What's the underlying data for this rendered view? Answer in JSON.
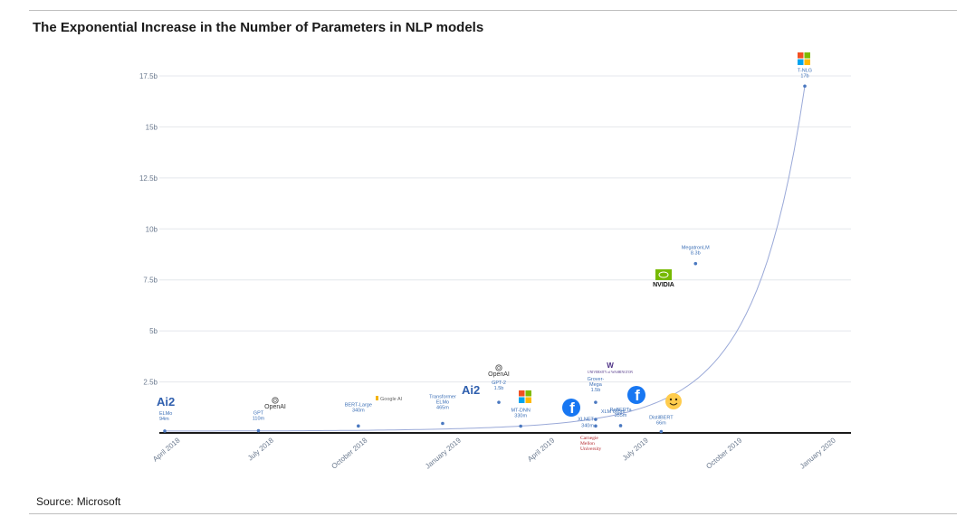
{
  "header": {
    "title": "The Exponential Increase in the Number of Parameters in NLP models"
  },
  "footer": {
    "source": "Source: Microsoft"
  },
  "chart_data": {
    "type": "line",
    "title": "The Exponential Increase in the Number of Parameters in NLP models",
    "xlabel": "",
    "ylabel": "",
    "ylim": [
      0,
      18
    ],
    "y_ticks": [
      {
        "v": 2.5,
        "label": "2.5b"
      },
      {
        "v": 5,
        "label": "5b"
      },
      {
        "v": 7.5,
        "label": "7.5b"
      },
      {
        "v": 10,
        "label": "10b"
      },
      {
        "v": 12.5,
        "label": "12.5b"
      },
      {
        "v": 15,
        "label": "15b"
      },
      {
        "v": 17.5,
        "label": "17.5b"
      }
    ],
    "x_ticks": [
      {
        "t": 0.5,
        "label": "April 2018"
      },
      {
        "t": 3.5,
        "label": "July 2018"
      },
      {
        "t": 6.5,
        "label": "October 2018"
      },
      {
        "t": 9.5,
        "label": "January 2019"
      },
      {
        "t": 12.5,
        "label": "April 2019"
      },
      {
        "t": 15.5,
        "label": "July 2019"
      },
      {
        "t": 18.5,
        "label": "October 2019"
      },
      {
        "t": 21.5,
        "label": "January 2020"
      }
    ],
    "grid": true,
    "points": [
      {
        "t": 0.0,
        "y": 0.094,
        "name": "ELMo",
        "value": "94m",
        "logo": "Ai2"
      },
      {
        "t": 3.0,
        "y": 0.11,
        "name": "GPT",
        "value": "110m",
        "logo": "OpenAI"
      },
      {
        "t": 6.2,
        "y": 0.34,
        "name": "BERT-Large",
        "value": "340m",
        "logo": "Google AI"
      },
      {
        "t": 8.9,
        "y": 0.465,
        "name": "Transformer ELMo",
        "value": "465m",
        "logo": "Ai2"
      },
      {
        "t": 10.7,
        "y": 1.5,
        "name": "GPT-2",
        "value": "1.5b",
        "logo": "OpenAI"
      },
      {
        "t": 11.4,
        "y": 0.33,
        "name": "MT-DNN",
        "value": "330m",
        "logo": "Microsoft"
      },
      {
        "t": 13.8,
        "y": 0.665,
        "name": "XLM",
        "value": "665m",
        "logo": "Facebook"
      },
      {
        "t": 13.8,
        "y": 1.5,
        "name": "Grover-Mega",
        "value": "1.5b",
        "logo": "University of Washington"
      },
      {
        "t": 13.8,
        "y": 0.34,
        "name": "XLNET",
        "value": "340m",
        "logo": "Carnegie Mellon University"
      },
      {
        "t": 14.6,
        "y": 0.355,
        "name": "RoBERTa",
        "value": "355m",
        "logo": "Facebook"
      },
      {
        "t": 15.9,
        "y": 0.066,
        "name": "DistilBERT",
        "value": "66m",
        "logo": "Hugging Face"
      },
      {
        "t": 17.0,
        "y": 8.3,
        "name": "MegatronLM",
        "value": "8.3b",
        "logo": "NVIDIA"
      },
      {
        "t": 20.5,
        "y": 17.0,
        "name": "T-NLG",
        "value": "17b",
        "logo": "Microsoft"
      }
    ],
    "logos": {
      "ai2": "Ai2",
      "openai": "OpenAI",
      "google": "Google AI",
      "nvidia": "NVIDIA",
      "cmu": [
        "Carnegie",
        "Mellon",
        "University"
      ],
      "uw": "UNIVERSITY of WASHINGTON"
    },
    "colors": {
      "curve": "#9aa9d8",
      "point": "#4a78c0",
      "label": "#3b6fb6",
      "grid": "#e4e7ec",
      "axis": "#1a1a1a",
      "facebook": "#1877f2",
      "nvidia": "#76b900",
      "cmu": "#b3262c"
    }
  }
}
